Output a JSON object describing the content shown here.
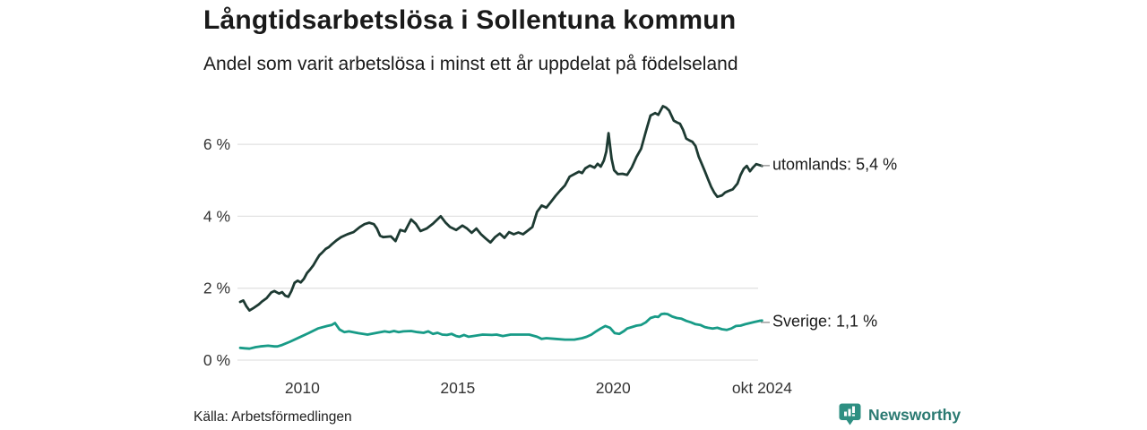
{
  "header": {
    "title": "Långtidsarbetslösa i Sollentuna kommun",
    "subtitle": "Andel som varit arbetslösa i minst ett år uppdelat på födelseland"
  },
  "chart_data": {
    "type": "line",
    "title": "Långtidsarbetslösa i Sollentuna kommun",
    "subtitle": "Andel som varit arbetslösa i minst ett år uppdelat på födelseland",
    "xlabel": "",
    "ylabel": "",
    "x_unit": "decimal_year",
    "y_unit": "percent",
    "xlim": [
      2008.0,
      2024.83
    ],
    "ylim": [
      0,
      7.2
    ],
    "grid": "horizontal-only",
    "legend_position": "right-end-labels",
    "y_ticks": [
      {
        "v": 0,
        "label": "0 %"
      },
      {
        "v": 2,
        "label": "2 %"
      },
      {
        "v": 4,
        "label": "4 %"
      },
      {
        "v": 6,
        "label": "6 %"
      }
    ],
    "x_ticks": [
      {
        "v": 2010,
        "label": "2010"
      },
      {
        "v": 2015,
        "label": "2015"
      },
      {
        "v": 2020,
        "label": "2020"
      },
      {
        "v": 2024.79,
        "label": "okt 2024"
      }
    ],
    "series": [
      {
        "name": "utomlands",
        "color": "#1d3a32",
        "last_value_label": "5,4 %",
        "points": [
          [
            2008.0,
            1.62
          ],
          [
            2008.1,
            1.66
          ],
          [
            2008.2,
            1.5
          ],
          [
            2008.3,
            1.38
          ],
          [
            2008.45,
            1.46
          ],
          [
            2008.6,
            1.55
          ],
          [
            2008.7,
            1.63
          ],
          [
            2008.85,
            1.72
          ],
          [
            2009.0,
            1.88
          ],
          [
            2009.1,
            1.92
          ],
          [
            2009.25,
            1.85
          ],
          [
            2009.35,
            1.89
          ],
          [
            2009.45,
            1.79
          ],
          [
            2009.55,
            1.76
          ],
          [
            2009.65,
            1.92
          ],
          [
            2009.75,
            2.15
          ],
          [
            2009.85,
            2.21
          ],
          [
            2009.95,
            2.16
          ],
          [
            2010.05,
            2.26
          ],
          [
            2010.15,
            2.42
          ],
          [
            2010.25,
            2.52
          ],
          [
            2010.35,
            2.63
          ],
          [
            2010.45,
            2.78
          ],
          [
            2010.55,
            2.92
          ],
          [
            2010.65,
            3.0
          ],
          [
            2010.75,
            3.09
          ],
          [
            2010.85,
            3.14
          ],
          [
            2010.95,
            3.22
          ],
          [
            2011.1,
            3.33
          ],
          [
            2011.25,
            3.42
          ],
          [
            2011.45,
            3.5
          ],
          [
            2011.65,
            3.56
          ],
          [
            2011.85,
            3.7
          ],
          [
            2012.0,
            3.78
          ],
          [
            2012.15,
            3.82
          ],
          [
            2012.3,
            3.78
          ],
          [
            2012.4,
            3.66
          ],
          [
            2012.5,
            3.46
          ],
          [
            2012.6,
            3.42
          ],
          [
            2012.85,
            3.44
          ],
          [
            2013.0,
            3.31
          ],
          [
            2013.15,
            3.62
          ],
          [
            2013.3,
            3.58
          ],
          [
            2013.5,
            3.91
          ],
          [
            2013.65,
            3.79
          ],
          [
            2013.8,
            3.59
          ],
          [
            2014.0,
            3.66
          ],
          [
            2014.2,
            3.79
          ],
          [
            2014.45,
            4.0
          ],
          [
            2014.6,
            3.83
          ],
          [
            2014.75,
            3.7
          ],
          [
            2014.95,
            3.62
          ],
          [
            2015.15,
            3.74
          ],
          [
            2015.3,
            3.66
          ],
          [
            2015.45,
            3.54
          ],
          [
            2015.6,
            3.66
          ],
          [
            2015.75,
            3.5
          ],
          [
            2015.9,
            3.38
          ],
          [
            2016.05,
            3.27
          ],
          [
            2016.2,
            3.42
          ],
          [
            2016.35,
            3.52
          ],
          [
            2016.5,
            3.4
          ],
          [
            2016.65,
            3.56
          ],
          [
            2016.8,
            3.5
          ],
          [
            2016.95,
            3.55
          ],
          [
            2017.1,
            3.5
          ],
          [
            2017.25,
            3.6
          ],
          [
            2017.4,
            3.7
          ],
          [
            2017.55,
            4.12
          ],
          [
            2017.7,
            4.3
          ],
          [
            2017.85,
            4.24
          ],
          [
            2018.0,
            4.4
          ],
          [
            2018.15,
            4.57
          ],
          [
            2018.3,
            4.72
          ],
          [
            2018.45,
            4.86
          ],
          [
            2018.6,
            5.1
          ],
          [
            2018.75,
            5.17
          ],
          [
            2018.9,
            5.24
          ],
          [
            2019.0,
            5.2
          ],
          [
            2019.1,
            5.33
          ],
          [
            2019.25,
            5.41
          ],
          [
            2019.4,
            5.35
          ],
          [
            2019.5,
            5.46
          ],
          [
            2019.6,
            5.38
          ],
          [
            2019.7,
            5.55
          ],
          [
            2019.78,
            5.8
          ],
          [
            2019.85,
            6.31
          ],
          [
            2019.95,
            5.6
          ],
          [
            2020.03,
            5.28
          ],
          [
            2020.15,
            5.17
          ],
          [
            2020.3,
            5.18
          ],
          [
            2020.45,
            5.15
          ],
          [
            2020.6,
            5.36
          ],
          [
            2020.75,
            5.65
          ],
          [
            2020.9,
            5.88
          ],
          [
            2021.05,
            6.35
          ],
          [
            2021.2,
            6.8
          ],
          [
            2021.35,
            6.87
          ],
          [
            2021.45,
            6.82
          ],
          [
            2021.6,
            7.06
          ],
          [
            2021.7,
            7.02
          ],
          [
            2021.8,
            6.94
          ],
          [
            2021.95,
            6.66
          ],
          [
            2022.05,
            6.61
          ],
          [
            2022.15,
            6.57
          ],
          [
            2022.25,
            6.4
          ],
          [
            2022.35,
            6.16
          ],
          [
            2022.45,
            6.11
          ],
          [
            2022.55,
            6.07
          ],
          [
            2022.65,
            5.95
          ],
          [
            2022.75,
            5.66
          ],
          [
            2022.85,
            5.46
          ],
          [
            2022.95,
            5.25
          ],
          [
            2023.05,
            5.03
          ],
          [
            2023.15,
            4.82
          ],
          [
            2023.25,
            4.66
          ],
          [
            2023.35,
            4.54
          ],
          [
            2023.5,
            4.58
          ],
          [
            2023.6,
            4.66
          ],
          [
            2023.7,
            4.7
          ],
          [
            2023.85,
            4.75
          ],
          [
            2024.0,
            4.91
          ],
          [
            2024.1,
            5.15
          ],
          [
            2024.2,
            5.32
          ],
          [
            2024.3,
            5.4
          ],
          [
            2024.4,
            5.25
          ],
          [
            2024.5,
            5.36
          ],
          [
            2024.6,
            5.45
          ],
          [
            2024.79,
            5.4
          ]
        ]
      },
      {
        "name": "Sverige",
        "color": "#189b87",
        "last_value_label": "1,1 %",
        "points": [
          [
            2008.0,
            0.34
          ],
          [
            2008.15,
            0.33
          ],
          [
            2008.3,
            0.32
          ],
          [
            2008.5,
            0.36
          ],
          [
            2008.65,
            0.38
          ],
          [
            2008.9,
            0.4
          ],
          [
            2009.1,
            0.38
          ],
          [
            2009.2,
            0.38
          ],
          [
            2009.35,
            0.42
          ],
          [
            2009.6,
            0.51
          ],
          [
            2009.9,
            0.63
          ],
          [
            2010.2,
            0.75
          ],
          [
            2010.5,
            0.88
          ],
          [
            2010.8,
            0.95
          ],
          [
            2010.95,
            0.98
          ],
          [
            2011.05,
            1.03
          ],
          [
            2011.2,
            0.85
          ],
          [
            2011.35,
            0.78
          ],
          [
            2011.5,
            0.8
          ],
          [
            2011.8,
            0.75
          ],
          [
            2012.1,
            0.71
          ],
          [
            2012.4,
            0.76
          ],
          [
            2012.65,
            0.8
          ],
          [
            2012.8,
            0.78
          ],
          [
            2012.95,
            0.81
          ],
          [
            2013.1,
            0.78
          ],
          [
            2013.25,
            0.8
          ],
          [
            2013.5,
            0.81
          ],
          [
            2013.7,
            0.78
          ],
          [
            2013.9,
            0.76
          ],
          [
            2014.05,
            0.8
          ],
          [
            2014.2,
            0.73
          ],
          [
            2014.35,
            0.76
          ],
          [
            2014.5,
            0.71
          ],
          [
            2014.65,
            0.7
          ],
          [
            2014.8,
            0.73
          ],
          [
            2014.95,
            0.67
          ],
          [
            2015.05,
            0.65
          ],
          [
            2015.2,
            0.7
          ],
          [
            2015.35,
            0.65
          ],
          [
            2015.5,
            0.67
          ],
          [
            2015.8,
            0.71
          ],
          [
            2016.1,
            0.7
          ],
          [
            2016.25,
            0.71
          ],
          [
            2016.45,
            0.67
          ],
          [
            2016.7,
            0.71
          ],
          [
            2017.0,
            0.71
          ],
          [
            2017.3,
            0.71
          ],
          [
            2017.55,
            0.65
          ],
          [
            2017.7,
            0.59
          ],
          [
            2017.85,
            0.61
          ],
          [
            2018.15,
            0.59
          ],
          [
            2018.45,
            0.57
          ],
          [
            2018.75,
            0.57
          ],
          [
            2019.0,
            0.61
          ],
          [
            2019.15,
            0.65
          ],
          [
            2019.3,
            0.71
          ],
          [
            2019.45,
            0.8
          ],
          [
            2019.6,
            0.88
          ],
          [
            2019.75,
            0.95
          ],
          [
            2019.9,
            0.9
          ],
          [
            2020.05,
            0.75
          ],
          [
            2020.2,
            0.73
          ],
          [
            2020.35,
            0.81
          ],
          [
            2020.45,
            0.88
          ],
          [
            2020.6,
            0.92
          ],
          [
            2020.75,
            0.96
          ],
          [
            2020.9,
            0.98
          ],
          [
            2021.05,
            1.05
          ],
          [
            2021.2,
            1.17
          ],
          [
            2021.35,
            1.21
          ],
          [
            2021.45,
            1.2
          ],
          [
            2021.55,
            1.28
          ],
          [
            2021.65,
            1.29
          ],
          [
            2021.75,
            1.28
          ],
          [
            2021.9,
            1.21
          ],
          [
            2022.05,
            1.17
          ],
          [
            2022.2,
            1.15
          ],
          [
            2022.35,
            1.09
          ],
          [
            2022.5,
            1.05
          ],
          [
            2022.65,
            1.0
          ],
          [
            2022.8,
            0.98
          ],
          [
            2022.95,
            0.92
          ],
          [
            2023.05,
            0.9
          ],
          [
            2023.2,
            0.88
          ],
          [
            2023.35,
            0.9
          ],
          [
            2023.5,
            0.86
          ],
          [
            2023.65,
            0.84
          ],
          [
            2023.8,
            0.88
          ],
          [
            2023.95,
            0.95
          ],
          [
            2024.1,
            0.96
          ],
          [
            2024.25,
            1.0
          ],
          [
            2024.4,
            1.03
          ],
          [
            2024.55,
            1.06
          ],
          [
            2024.7,
            1.09
          ],
          [
            2024.79,
            1.1
          ]
        ]
      }
    ],
    "annotations": [
      {
        "dash": "–",
        "label": "utomlands: 5,4 %"
      },
      {
        "dash": "–",
        "label": "Sverige: 1,1 %"
      }
    ]
  },
  "footer": {
    "source": "Källa: Arbetsförmedlingen",
    "brand": "Newsworthy"
  },
  "colors": {
    "series_utomlands": "#1d3a32",
    "series_sverige": "#189b87",
    "gridline": "#e2e2e2",
    "axis_text": "#333333",
    "title_text": "#1a1a1a",
    "annotation_dash": "#888888",
    "brand_icon": "#2e8f82",
    "brand_text": "#2b7a72"
  }
}
